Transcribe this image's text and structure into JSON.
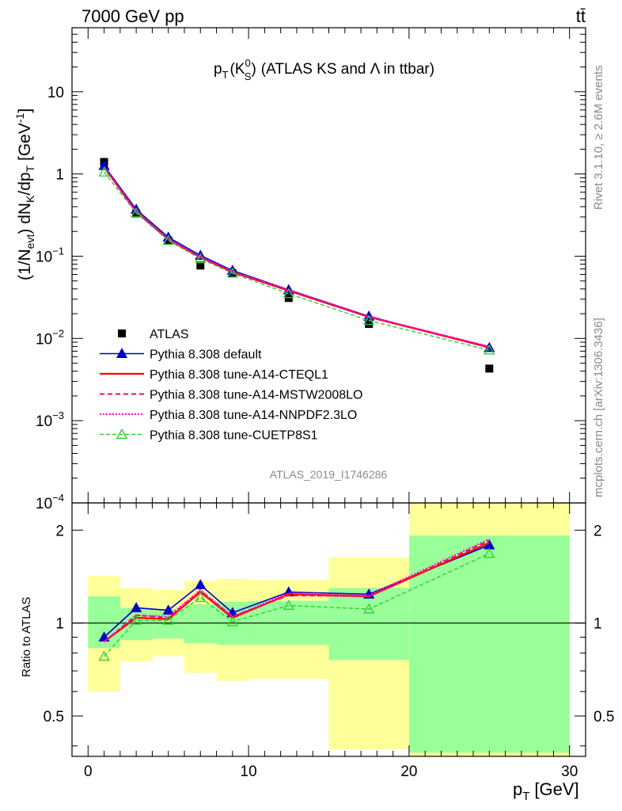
{
  "header": {
    "energy_label": "7000 GeV pp",
    "process_label": "tt̄"
  },
  "side_labels": {
    "rivet": "Rivet 3.1.10, ≥ 2.6M events",
    "mcplots": "mcplots.cern.ch [arXiv:1306.3436]"
  },
  "analysis_id": "ATLAS_2019_I1746286",
  "colors": {
    "atlas": "#000000",
    "default": "#0000cc",
    "cteql1": "#ff0000",
    "mstw": "#ff0066",
    "nnpdf": "#ff00cc",
    "cuetp8s1": "#33cc33",
    "band_yellow": "#ffff99",
    "band_green": "#99ff99"
  },
  "chart_data": [
    {
      "type": "line",
      "panel": "main",
      "title": {
        "main": "p",
        "sub": "T",
        "arg": "(K",
        "arg_sup": "0",
        "arg_sub": "S",
        "close": ")",
        "rest": "(ATLAS KS and Λ in ttbar)"
      },
      "ylabel": "(1/N_evt) dN_K/dp_T [GeV^-1]",
      "ylabel_parts": [
        "(1/N",
        "evt",
        ") dN",
        "K",
        "/dp",
        "T",
        " [GeV",
        "-1",
        "]"
      ],
      "yscale": "log",
      "ylim": [
        0.0001,
        60
      ],
      "xlim": [
        -1,
        31
      ],
      "ytick_labels": [
        {
          "v": 0.0001,
          "base": "10",
          "exp": "−4"
        },
        {
          "v": 0.001,
          "base": "10",
          "exp": "−3"
        },
        {
          "v": 0.01,
          "base": "10",
          "exp": "−2"
        },
        {
          "v": 0.1,
          "base": "10",
          "exp": "−1"
        },
        {
          "v": 1,
          "base": "1",
          "exp": ""
        },
        {
          "v": 10,
          "base": "10",
          "exp": ""
        }
      ],
      "legend_position": "lower-left",
      "x": [
        1,
        3,
        5,
        7,
        9,
        12.5,
        17.5,
        25
      ],
      "series": [
        {
          "name": "ATLAS",
          "key": "atlas",
          "style": "marker-square",
          "values": [
            1.4,
            0.33,
            0.155,
            0.077,
            0.062,
            0.031,
            0.015,
            0.0043
          ]
        },
        {
          "name": "Pythia 8.308 default",
          "key": "default",
          "style": "line-triangle",
          "values": [
            1.26,
            0.37,
            0.17,
            0.102,
            0.067,
            0.039,
            0.0186,
            0.0077
          ]
        },
        {
          "name": "Pythia 8.308 tune-A14-CTEQL1",
          "key": "cteql1",
          "style": "solid",
          "values": [
            1.21,
            0.345,
            0.16,
            0.097,
            0.064,
            0.038,
            0.0182,
            0.0078
          ]
        },
        {
          "name": "Pythia 8.308 tune-A14-MSTW2008LO",
          "key": "mstw",
          "style": "dashed",
          "values": [
            1.21,
            0.35,
            0.162,
            0.097,
            0.065,
            0.038,
            0.0183,
            0.0079
          ]
        },
        {
          "name": "Pythia 8.308 tune-A14-NNPDF2.3LO",
          "key": "nnpdf",
          "style": "dotted",
          "values": [
            1.22,
            0.35,
            0.161,
            0.098,
            0.065,
            0.039,
            0.0183,
            0.008
          ]
        },
        {
          "name": "Pythia 8.308 tune-CUETP8S1",
          "key": "cuetp8s1",
          "style": "dashed-open-triangle",
          "values": [
            1.05,
            0.335,
            0.155,
            0.093,
            0.062,
            0.035,
            0.0165,
            0.0072
          ]
        }
      ]
    },
    {
      "type": "line",
      "panel": "ratio",
      "ylabel": "Ratio to ATLAS",
      "yscale": "log",
      "ylim": [
        0.37,
        2.45
      ],
      "xlim": [
        -1,
        31
      ],
      "xlabel_main": "p",
      "xlabel_sub": "T",
      "xlabel_unit": "[GeV]",
      "xticks": [
        0,
        10,
        20,
        30
      ],
      "ytick_labels": [
        {
          "v": 0.5,
          "label": "0.5"
        },
        {
          "v": 1,
          "label": "1"
        },
        {
          "v": 2,
          "label": "2"
        }
      ],
      "bands": [
        {
          "x0": 0,
          "x1": 2,
          "green": [
            0.83,
            1.22
          ],
          "yellow": [
            0.6,
            1.42
          ]
        },
        {
          "x0": 2,
          "x1": 4,
          "green": [
            0.88,
            1.12
          ],
          "yellow": [
            0.75,
            1.3
          ]
        },
        {
          "x0": 4,
          "x1": 6,
          "green": [
            0.89,
            1.11
          ],
          "yellow": [
            0.78,
            1.28
          ]
        },
        {
          "x0": 6,
          "x1": 8,
          "green": [
            0.86,
            1.15
          ],
          "yellow": [
            0.69,
            1.37
          ]
        },
        {
          "x0": 8,
          "x1": 10,
          "green": [
            0.85,
            1.17
          ],
          "yellow": [
            0.65,
            1.39
          ]
        },
        {
          "x0": 10,
          "x1": 15,
          "green": [
            0.85,
            1.18
          ],
          "yellow": [
            0.66,
            1.38
          ]
        },
        {
          "x0": 15,
          "x1": 20,
          "green": [
            0.76,
            1.3
          ],
          "yellow": [
            0.39,
            1.63
          ]
        },
        {
          "x0": 20,
          "x1": 30,
          "green": [
            0.38,
            1.92
          ],
          "yellow": [
            0.37,
            2.45
          ]
        }
      ],
      "x": [
        1,
        3,
        5,
        7,
        9,
        12.5,
        17.5,
        25
      ],
      "series": [
        {
          "name": "Pythia 8.308 default",
          "key": "default",
          "style": "line-triangle",
          "values": [
            0.9,
            1.12,
            1.1,
            1.33,
            1.08,
            1.26,
            1.24,
            1.79
          ]
        },
        {
          "name": "Pythia 8.308 tune-A14-CTEQL1",
          "key": "cteql1",
          "style": "solid",
          "values": [
            0.87,
            1.04,
            1.03,
            1.26,
            1.04,
            1.24,
            1.22,
            1.82
          ]
        },
        {
          "name": "Pythia 8.308 tune-A14-MSTW2008LO",
          "key": "mstw",
          "style": "dashed",
          "values": [
            0.87,
            1.06,
            1.04,
            1.27,
            1.05,
            1.23,
            1.22,
            1.85
          ]
        },
        {
          "name": "Pythia 8.308 tune-A14-NNPDF2.3LO",
          "key": "nnpdf",
          "style": "dotted",
          "values": [
            0.87,
            1.06,
            1.05,
            1.28,
            1.05,
            1.25,
            1.23,
            1.87
          ]
        },
        {
          "name": "Pythia 8.308 tune-CUETP8S1",
          "key": "cuetp8s1",
          "style": "dashed-open-triangle",
          "values": [
            0.78,
            1.02,
            1.02,
            1.21,
            1.01,
            1.14,
            1.11,
            1.68
          ]
        }
      ]
    }
  ]
}
